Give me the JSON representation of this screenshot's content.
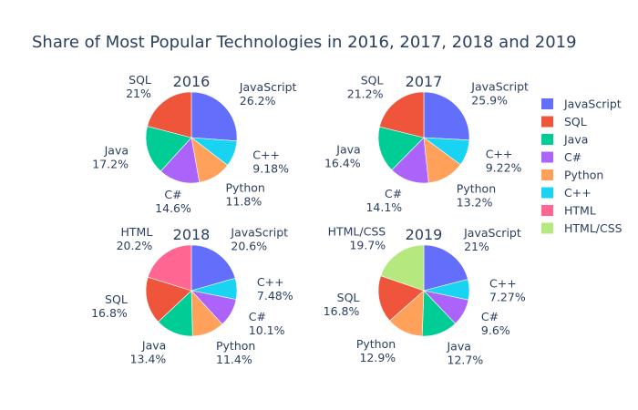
{
  "chart_data": {
    "type": "pie",
    "title": "Share of Most Popular Technologies in 2016, 2017, 2018 and 2019",
    "colors": {
      "JavaScript": "#636efa",
      "SQL": "#ef553b",
      "Java": "#00cc96",
      "C#": "#ab63fa",
      "Python": "#ffa15a",
      "C++": "#19d3f3",
      "HTML": "#ff6692",
      "HTML/CSS": "#b6e880"
    },
    "legend": {
      "position": "right",
      "items": [
        "JavaScript",
        "SQL",
        "Java",
        "C#",
        "Python",
        "C++",
        "HTML",
        "HTML/CSS"
      ]
    },
    "pies": [
      {
        "title": "2016",
        "slices": [
          {
            "label": "JavaScript",
            "value": 26.2,
            "text": "26.2%"
          },
          {
            "label": "C++",
            "value": 9.18,
            "text": "9.18%"
          },
          {
            "label": "Python",
            "value": 11.8,
            "text": "11.8%"
          },
          {
            "label": "C#",
            "value": 14.6,
            "text": "14.6%"
          },
          {
            "label": "Java",
            "value": 17.2,
            "text": "17.2%"
          },
          {
            "label": "SQL",
            "value": 21.0,
            "text": "21%"
          }
        ]
      },
      {
        "title": "2017",
        "slices": [
          {
            "label": "JavaScript",
            "value": 25.9,
            "text": "25.9%"
          },
          {
            "label": "C++",
            "value": 9.22,
            "text": "9.22%"
          },
          {
            "label": "Python",
            "value": 13.2,
            "text": "13.2%"
          },
          {
            "label": "C#",
            "value": 14.1,
            "text": "14.1%"
          },
          {
            "label": "Java",
            "value": 16.4,
            "text": "16.4%"
          },
          {
            "label": "SQL",
            "value": 21.2,
            "text": "21.2%"
          }
        ]
      },
      {
        "title": "2018",
        "slices": [
          {
            "label": "JavaScript",
            "value": 20.6,
            "text": "20.6%"
          },
          {
            "label": "C++",
            "value": 7.48,
            "text": "7.48%"
          },
          {
            "label": "C#",
            "value": 10.1,
            "text": "10.1%"
          },
          {
            "label": "Python",
            "value": 11.4,
            "text": "11.4%"
          },
          {
            "label": "Java",
            "value": 13.4,
            "text": "13.4%"
          },
          {
            "label": "SQL",
            "value": 16.8,
            "text": "16.8%"
          },
          {
            "label": "HTML",
            "value": 20.2,
            "text": "20.2%"
          }
        ]
      },
      {
        "title": "2019",
        "slices": [
          {
            "label": "JavaScript",
            "value": 21.0,
            "text": "21%"
          },
          {
            "label": "C++",
            "value": 7.27,
            "text": "7.27%"
          },
          {
            "label": "C#",
            "value": 9.6,
            "text": "9.6%"
          },
          {
            "label": "Java",
            "value": 12.7,
            "text": "12.7%"
          },
          {
            "label": "Python",
            "value": 12.9,
            "text": "12.9%"
          },
          {
            "label": "SQL",
            "value": 16.8,
            "text": "16.8%"
          },
          {
            "label": "HTML/CSS",
            "value": 19.7,
            "text": "19.7%"
          }
        ]
      }
    ]
  }
}
